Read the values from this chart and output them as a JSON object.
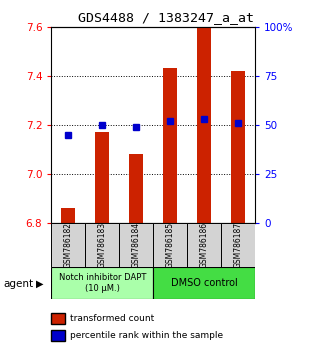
{
  "title": "GDS4488 / 1383247_a_at",
  "samples": [
    "GSM786182",
    "GSM786183",
    "GSM786184",
    "GSM786185",
    "GSM786186",
    "GSM786187"
  ],
  "red_values": [
    6.86,
    7.17,
    7.08,
    7.43,
    7.6,
    7.42
  ],
  "blue_values": [
    45,
    50,
    49,
    52,
    53,
    51
  ],
  "ylim_left": [
    6.8,
    7.6
  ],
  "ylim_right": [
    0,
    100
  ],
  "yticks_left": [
    6.8,
    7.0,
    7.2,
    7.4,
    7.6
  ],
  "yticks_right": [
    0,
    25,
    50,
    75,
    100
  ],
  "ytick_labels_right": [
    "0",
    "25",
    "50",
    "75",
    "100%"
  ],
  "group1_label": "Notch inhibitor DAPT\n(10 μM.)",
  "group2_label": "DMSO control",
  "group1_color": "#AAFFAA",
  "group2_color": "#44DD44",
  "bar_color": "#CC2200",
  "dot_color": "#0000CC",
  "legend_red": "transformed count",
  "legend_blue": "percentile rank within the sample",
  "agent_label": "agent",
  "bar_width": 0.4,
  "bg_color": "#FFFFFF"
}
